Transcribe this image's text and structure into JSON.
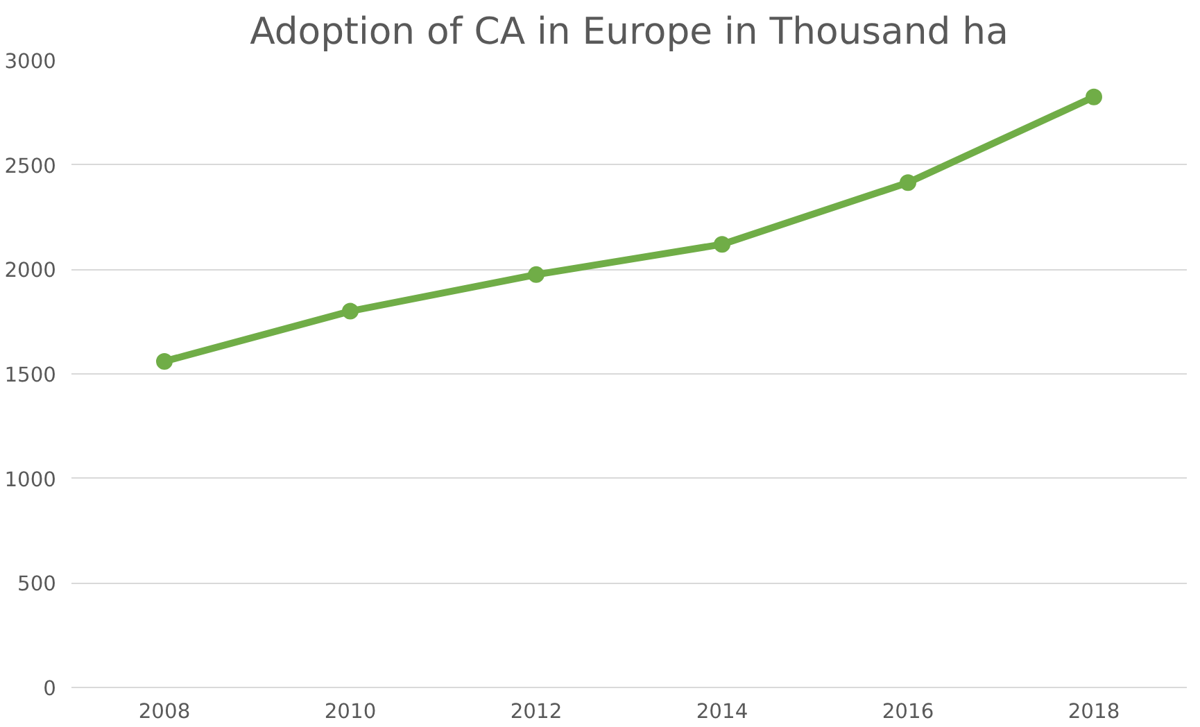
{
  "chart_data": {
    "type": "line",
    "title": "Adoption of CA in Europe in Thousand ha",
    "categories": [
      "2008",
      "2010",
      "2012",
      "2014",
      "2016",
      "2018"
    ],
    "series": [
      {
        "color": "#70ad47",
        "values": [
          1560,
          1800,
          1975,
          2120,
          2415,
          2825
        ]
      }
    ],
    "ylim": [
      0,
      3000
    ],
    "yticks": [
      0,
      500,
      1000,
      1500,
      2000,
      2500,
      3000
    ],
    "grid": "y",
    "marker": "circle",
    "line_style": "solid"
  }
}
